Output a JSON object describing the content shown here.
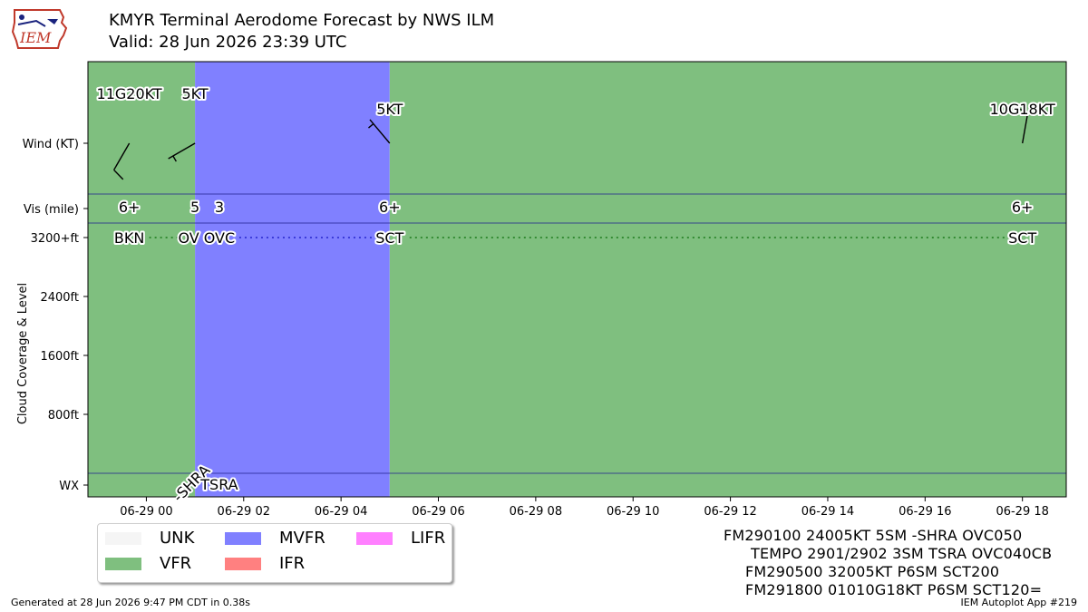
{
  "header": {
    "title": "KMYR Terminal Aerodome Forecast by NWS ILM",
    "valid": "Valid: 28 Jun 2026 23:39 UTC",
    "logo_text": "IEM"
  },
  "taf_lines": [
    "FM290100 24005KT 5SM -SHRA OVC050",
    "TEMPO 2901/2902 3SM TSRA OVC040CB",
    "FM290500 32005KT P6SM SCT200",
    "FM291800 01010G18KT P6SM SCT120="
  ],
  "legend": [
    {
      "label": "UNK",
      "color": "#f5f5f5"
    },
    {
      "label": "VFR",
      "color": "#7fbf7f"
    },
    {
      "label": "MVFR",
      "color": "#8080ff"
    },
    {
      "label": "IFR",
      "color": "#ff8080"
    },
    {
      "label": "LIFR",
      "color": "#ff80ff"
    }
  ],
  "footer": {
    "left": "Generated at 28 Jun 2026 9:47 PM CDT in 0.38s",
    "right": "IEM Autoplot App #219"
  },
  "chart_data": {
    "type": "timeline",
    "title": "KMYR Terminal Aerodome Forecast by NWS ILM",
    "x_axis": {
      "unit": "hours from 2026-06-29 00Z",
      "range": [
        -1.2,
        18.9
      ],
      "ticks": [
        {
          "value": 0,
          "label": "06-29 00"
        },
        {
          "value": 2,
          "label": "06-29 02"
        },
        {
          "value": 4,
          "label": "06-29 04"
        },
        {
          "value": 6,
          "label": "06-29 06"
        },
        {
          "value": 8,
          "label": "06-29 08"
        },
        {
          "value": 10,
          "label": "06-29 10"
        },
        {
          "value": 12,
          "label": "06-29 12"
        },
        {
          "value": 14,
          "label": "06-29 14"
        },
        {
          "value": 16,
          "label": "06-29 16"
        },
        {
          "value": 18,
          "label": "06-29 18"
        }
      ]
    },
    "y_axis": {
      "label": "Cloud Coverage & Level",
      "range_ft": [
        -1000,
        6000
      ],
      "ticks": [
        {
          "value": 800,
          "label": "800ft"
        },
        {
          "value": 1600,
          "label": "1600ft"
        },
        {
          "value": 2400,
          "label": "2400ft"
        },
        {
          "value": 3200,
          "label": "3200+ft"
        }
      ],
      "row_labels": {
        "wind": "Wind (KT)",
        "vis": "Vis (mile)",
        "wx": "WX"
      }
    },
    "categories": [
      {
        "start": -1.2,
        "end": 1.0,
        "category": "VFR",
        "color": "#7fbf7f"
      },
      {
        "start": 1.0,
        "end": 5.0,
        "category": "MVFR",
        "color": "#8080ff"
      },
      {
        "start": 5.0,
        "end": 18.9,
        "category": "VFR",
        "color": "#7fbf7f"
      }
    ],
    "winds": [
      {
        "time": -0.35,
        "label": "11G20KT",
        "dir": 210,
        "speed": 11,
        "gust": 20
      },
      {
        "time": 1.0,
        "label": "5KT",
        "dir": 240,
        "speed": 5
      },
      {
        "time": 5.0,
        "label": "5KT",
        "dir": 320,
        "speed": 5
      },
      {
        "time": 18.0,
        "label": "10G18KT",
        "dir": 10,
        "speed": 10,
        "gust": 18
      }
    ],
    "visibility": [
      {
        "time": -0.35,
        "label": "6+"
      },
      {
        "time": 1.0,
        "label": "5"
      },
      {
        "time": 1.5,
        "label": "3"
      },
      {
        "time": 5.0,
        "label": "6+"
      },
      {
        "time": 18.0,
        "label": "6+"
      }
    ],
    "clouds": [
      {
        "time": -0.35,
        "label": "BKN",
        "level_ft": 3200
      },
      {
        "time": 1.0,
        "label": "OV",
        "level_ft": 3200
      },
      {
        "time": 1.5,
        "label": "OVC",
        "level_ft": 3200
      },
      {
        "time": 5.0,
        "label": "SCT",
        "level_ft": 3200
      },
      {
        "time": 18.0,
        "label": "SCT",
        "level_ft": 3200
      }
    ],
    "weather": [
      {
        "time": 1.0,
        "label": "-SHRA"
      },
      {
        "time": 1.5,
        "label": "TSRA"
      }
    ],
    "colors": {
      "VFR": "#7fbf7f",
      "MVFR": "#8080ff",
      "IFR": "#ff8080",
      "LIFR": "#ff80ff",
      "UNK": "#f5f5f5"
    }
  }
}
